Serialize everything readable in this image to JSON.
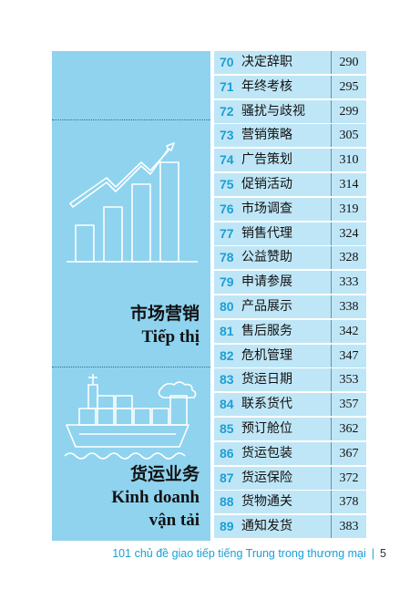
{
  "sections": [
    {
      "title_cn": "市场营销",
      "title_vn": "Tiếp thị"
    },
    {
      "title_cn": "货运业务",
      "title_vn_line1": "Kinh doanh",
      "title_vn_line2": "vận tải"
    }
  ],
  "entries": [
    {
      "num": "70",
      "title": "决定辞职",
      "page": "290"
    },
    {
      "num": "71",
      "title": "年终考核",
      "page": "295"
    },
    {
      "num": "72",
      "title": "骚扰与歧视",
      "page": "299"
    },
    {
      "num": "73",
      "title": "营销策略",
      "page": "305"
    },
    {
      "num": "74",
      "title": "广告策划",
      "page": "310"
    },
    {
      "num": "75",
      "title": "促销活动",
      "page": "314"
    },
    {
      "num": "76",
      "title": "市场调查",
      "page": "319"
    },
    {
      "num": "77",
      "title": "销售代理",
      "page": "324"
    },
    {
      "num": "78",
      "title": "公益赞助",
      "page": "328"
    },
    {
      "num": "79",
      "title": "申请参展",
      "page": "333"
    },
    {
      "num": "80",
      "title": "产品展示",
      "page": "338"
    },
    {
      "num": "81",
      "title": "售后服务",
      "page": "342"
    },
    {
      "num": "82",
      "title": "危机管理",
      "page": "347"
    },
    {
      "num": "83",
      "title": "货运日期",
      "page": "353"
    },
    {
      "num": "84",
      "title": "联系货代",
      "page": "357"
    },
    {
      "num": "85",
      "title": "预订舱位",
      "page": "362"
    },
    {
      "num": "86",
      "title": "货运包装",
      "page": "367"
    },
    {
      "num": "87",
      "title": "货运保险",
      "page": "372"
    },
    {
      "num": "88",
      "title": "货物通关",
      "page": "378"
    },
    {
      "num": "89",
      "title": "通知发货",
      "page": "383"
    }
  ],
  "footer": {
    "book_title": "101 chủ đề giao tiếp tiếng Trung trong thương mại",
    "page_number": "5"
  },
  "icons": [
    "bar-chart-growth-icon",
    "cargo-ship-icon"
  ]
}
